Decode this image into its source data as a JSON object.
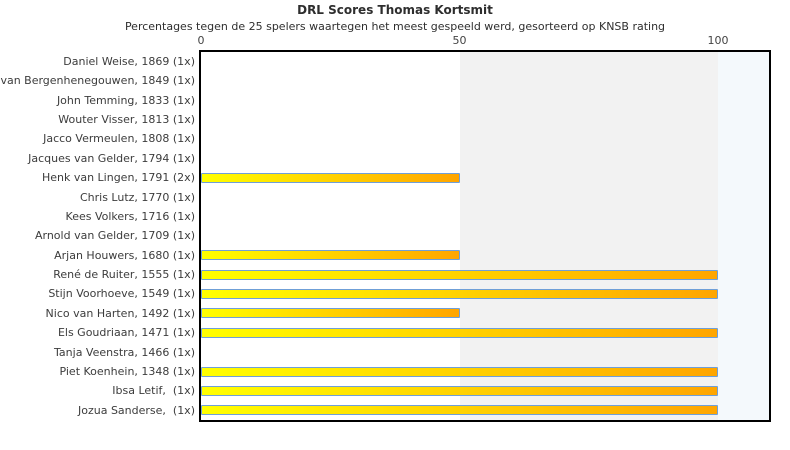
{
  "chart_data": {
    "type": "bar",
    "orientation": "horizontal",
    "title": "DRL Scores Thomas Kortsmit",
    "subtitle": "Percentages tegen de 25 spelers waartegen het meest gespeeld werd, gesorteerd op KNSB rating",
    "xlabel": "",
    "ylabel": "",
    "xlim": [
      0,
      110
    ],
    "x_ticks": [
      0,
      50,
      100
    ],
    "x_tick_labels": [
      "0",
      "50",
      "100"
    ],
    "grid": false,
    "legend": false,
    "categories": [
      "Daniel Weise, 1869 (1x)",
      "van Bergenhenegouwen, 1849 (1x)",
      "John Temming, 1833 (1x)",
      "Wouter Visser, 1813 (1x)",
      "Jacco Vermeulen, 1808 (1x)",
      "Jacques van Gelder, 1794 (1x)",
      "Henk van Lingen, 1791 (2x)",
      "Chris Lutz, 1770 (1x)",
      "Kees Volkers, 1716 (1x)",
      "Arnold van Gelder, 1709 (1x)",
      "Arjan Houwers, 1680 (1x)",
      "René de Ruiter, 1555 (1x)",
      "Stijn Voorhoeve, 1549 (1x)",
      "Nico van Harten, 1492 (1x)",
      "Els Goudriaan, 1471 (1x)",
      "Tanja Veenstra, 1466 (1x)",
      "Piet Koenhein, 1348 (1x)",
      "Ibsa Letif,  (1x)",
      "Jozua Sanderse,  (1x)"
    ],
    "values": [
      0,
      0,
      0,
      0,
      0,
      0,
      50,
      0,
      0,
      0,
      50,
      100,
      100,
      50,
      100,
      0,
      100,
      100,
      100
    ],
    "bands": [
      {
        "from": 50,
        "to": 100,
        "color": "#f2f2f2"
      },
      {
        "from": 100,
        "to": 110,
        "color": "#f4f9fc"
      }
    ],
    "bar_style": {
      "fill_gradient_start": "#ffff00",
      "fill_gradient_end": "#ffa500",
      "border_color": "#6f9fd8"
    },
    "plot_border_color": "#000000",
    "background_color": "#ffffff",
    "text_color": "#3c3c3c"
  }
}
